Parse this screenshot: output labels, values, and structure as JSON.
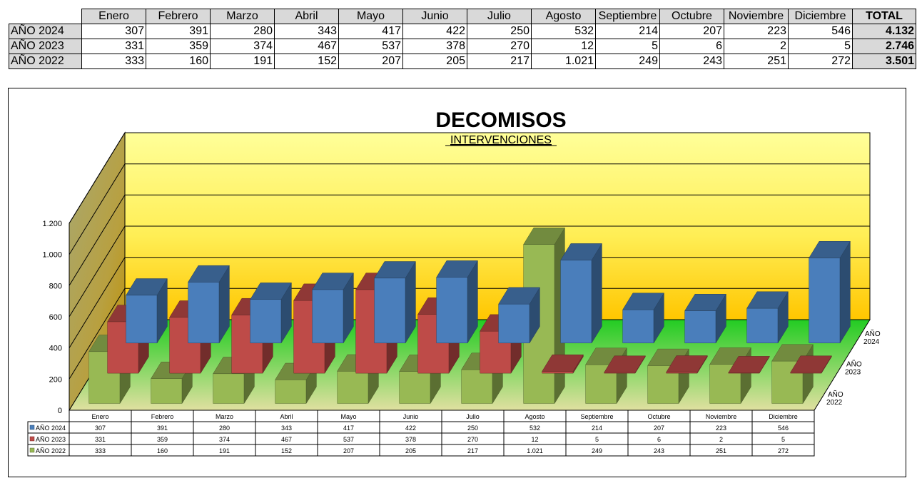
{
  "table": {
    "months": [
      "Enero",
      "Febrero",
      "Marzo",
      "Abril",
      "Mayo",
      "Junio",
      "Julio",
      "Agosto",
      "Septiembre",
      "Octubre",
      "Noviembre",
      "Diciembre"
    ],
    "total_header": "TOTAL",
    "rows": [
      {
        "label": "AÑO 2024",
        "values": [
          "307",
          "391",
          "280",
          "343",
          "417",
          "422",
          "250",
          "532",
          "214",
          "207",
          "223",
          "546"
        ],
        "total": "4.132"
      },
      {
        "label": "AÑO 2023",
        "values": [
          "331",
          "359",
          "374",
          "467",
          "537",
          "378",
          "270",
          "12",
          "5",
          "6",
          "2",
          "5"
        ],
        "total": "2.746"
      },
      {
        "label": "AÑO 2022",
        "values": [
          "333",
          "160",
          "191",
          "152",
          "207",
          "205",
          "217",
          "1.021",
          "249",
          "243",
          "251",
          "272"
        ],
        "total": "3.501"
      }
    ]
  },
  "chart_data": {
    "type": "bar",
    "title": "DECOMISOS",
    "subtitle": "INTERVENCIONES",
    "categories": [
      "Enero",
      "Febrero",
      "Marzo",
      "Abril",
      "Mayo",
      "Junio",
      "Julio",
      "Agosto",
      "Septiembre",
      "Octubre",
      "Noviembre",
      "Diciembre"
    ],
    "series": [
      {
        "name": "AÑO 2024",
        "depth_label": [
          "AÑO",
          "2024"
        ],
        "color": "#4a7ebb",
        "values": [
          307,
          391,
          280,
          343,
          417,
          422,
          250,
          532,
          214,
          207,
          223,
          546
        ],
        "labels": [
          "307",
          "391",
          "280",
          "343",
          "417",
          "422",
          "250",
          "532",
          "214",
          "207",
          "223",
          "546"
        ]
      },
      {
        "name": "AÑO 2023",
        "depth_label": [
          "AÑO",
          "2023"
        ],
        "color": "#be4b48",
        "values": [
          331,
          359,
          374,
          467,
          537,
          378,
          270,
          12,
          5,
          6,
          2,
          5
        ],
        "labels": [
          "331",
          "359",
          "374",
          "467",
          "537",
          "378",
          "270",
          "12",
          "5",
          "6",
          "2",
          "5"
        ]
      },
      {
        "name": "AÑO 2022",
        "depth_label": [
          "AÑO",
          "2022"
        ],
        "color": "#98b954",
        "values": [
          333,
          160,
          191,
          152,
          207,
          205,
          217,
          1021,
          249,
          243,
          251,
          272
        ],
        "labels": [
          "333",
          "160",
          "191",
          "152",
          "207",
          "205",
          "217",
          "1.021",
          "249",
          "243",
          "251",
          "272"
        ]
      }
    ],
    "ylim": [
      0,
      1200
    ],
    "yticks": [
      0,
      200,
      400,
      600,
      800,
      1000,
      1200
    ],
    "ytick_labels": [
      "0",
      "200",
      "400",
      "600",
      "800",
      "1.000",
      "1.200"
    ],
    "grid": true,
    "legend": "data-table",
    "colors": {
      "back_wall_top": "#ffff99",
      "back_wall_bottom": "#ffcc00",
      "floor": "#33cc33",
      "side_wall": "#999966"
    }
  }
}
